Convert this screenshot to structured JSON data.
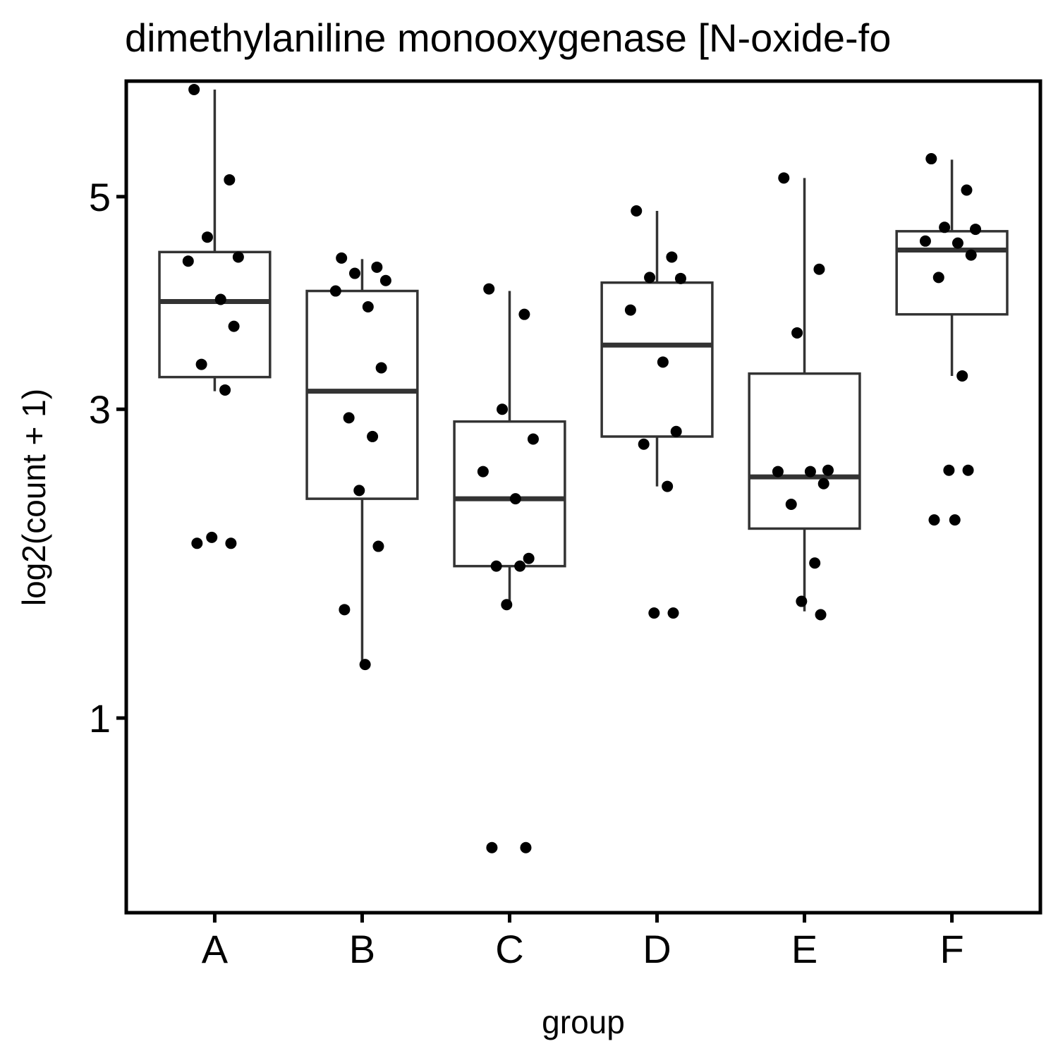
{
  "chart_data": {
    "type": "boxplot",
    "title": "dimethylaniline monooxygenase [N-oxide-fo",
    "xlabel": "group",
    "ylabel": "log2(count + 1)",
    "y_scale": "sqrt",
    "ylim": [
      0.29,
      6.3
    ],
    "y_ticks": [
      1,
      3,
      5
    ],
    "categories": [
      "A",
      "B",
      "C",
      "D",
      "E",
      "F"
    ],
    "boxes": [
      {
        "group": "A",
        "whisker_low": 3.15,
        "q1": 3.27,
        "median": 3.95,
        "q3": 4.43,
        "whisker_high": 6.2
      },
      {
        "group": "B",
        "whisker_low": 1.28,
        "q1": 2.31,
        "median": 3.15,
        "q3": 4.05,
        "whisker_high": 4.36
      },
      {
        "group": "C",
        "whisker_low": 1.62,
        "q1": 1.85,
        "median": 2.31,
        "q3": 2.9,
        "whisker_high": 4.05
      },
      {
        "group": "D",
        "whisker_low": 2.4,
        "q1": 2.78,
        "median": 3.55,
        "q3": 4.13,
        "whisker_high": 4.85
      },
      {
        "group": "E",
        "whisker_low": 1.57,
        "q1": 2.1,
        "median": 2.47,
        "q3": 3.3,
        "whisker_high": 5.2
      },
      {
        "group": "F",
        "whisker_low": 3.28,
        "q1": 3.83,
        "median": 4.45,
        "q3": 4.64,
        "whisker_high": 5.4
      }
    ],
    "points": [
      {
        "group": "A",
        "values": [
          6.2,
          5.18,
          4.58,
          4.38,
          4.34,
          3.97,
          3.72,
          3.38,
          3.16,
          2.04,
          2.0,
          2.0
        ]
      },
      {
        "group": "B",
        "values": [
          4.37,
          4.28,
          4.22,
          4.15,
          4.05,
          3.9,
          3.35,
          2.93,
          2.78,
          2.37,
          1.98,
          1.58,
          1.27
        ]
      },
      {
        "group": "C",
        "values": [
          4.07,
          3.83,
          3.0,
          2.76,
          2.51,
          2.31,
          1.9,
          1.85,
          1.85,
          1.61,
          0.48,
          0.48
        ]
      },
      {
        "group": "D",
        "values": [
          4.85,
          4.38,
          4.18,
          4.17,
          3.87,
          3.4,
          2.82,
          2.72,
          2.4,
          1.56,
          1.56
        ]
      },
      {
        "group": "E",
        "values": [
          5.2,
          4.26,
          3.66,
          2.52,
          2.51,
          2.51,
          2.42,
          2.27,
          1.87,
          1.63,
          1.55
        ]
      },
      {
        "group": "F",
        "values": [
          5.41,
          5.07,
          4.68,
          4.66,
          4.54,
          4.52,
          4.4,
          4.18,
          3.28,
          2.52,
          2.52,
          2.16,
          2.16
        ]
      }
    ],
    "grid": false,
    "legend": "none"
  }
}
